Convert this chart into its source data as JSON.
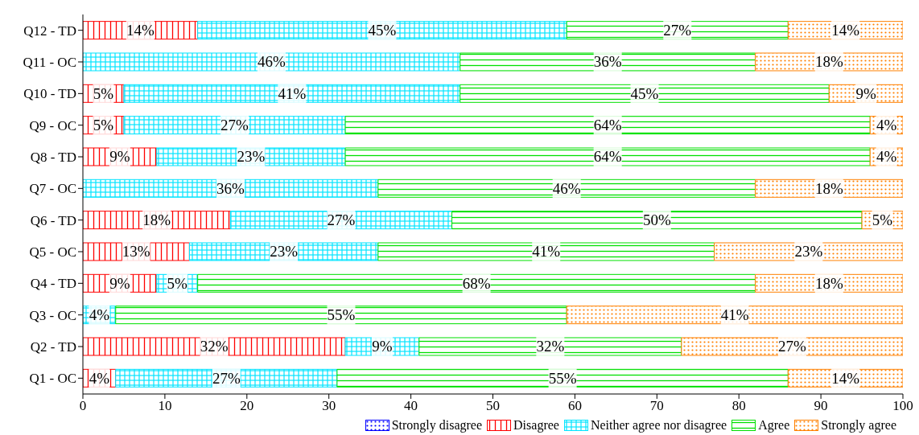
{
  "chart_data": {
    "type": "bar",
    "orientation": "horizontal",
    "stacked": true,
    "categories": [
      "Q12 - TD",
      "Q11 - OC",
      "Q10 - TD",
      "Q9 - OC",
      "Q8 - TD",
      "Q7 - OC",
      "Q6 - TD",
      "Q5 - OC",
      "Q4 - TD",
      "Q3 - OC",
      "Q2 - TD",
      "Q1 - OC"
    ],
    "series": [
      {
        "name": "Strongly disagree",
        "color": "#0000ff",
        "values": [
          null,
          null,
          null,
          null,
          null,
          null,
          null,
          null,
          null,
          null,
          null,
          null
        ],
        "value_labels": [
          null,
          null,
          null,
          null,
          null,
          null,
          null,
          null,
          null,
          null,
          null,
          null
        ]
      },
      {
        "name": "Disagree",
        "color": "#ff0000",
        "values": [
          14,
          null,
          5,
          5,
          9,
          null,
          18,
          13,
          9,
          null,
          32,
          4
        ],
        "value_labels": [
          "14%",
          null,
          "5%",
          "5%",
          "9%",
          null,
          "18%",
          "13%",
          "9%",
          null,
          "32%",
          "4%"
        ]
      },
      {
        "name": "Neither agree nor disagree",
        "color": "#00e5ff",
        "values": [
          45,
          46,
          41,
          27,
          23,
          36,
          27,
          23,
          5,
          4,
          9,
          27
        ],
        "value_labels": [
          "45%",
          "46%",
          "41%",
          "27%",
          "23%",
          "36%",
          "27%",
          "23%",
          "5%",
          "4%",
          "9%",
          "27%"
        ]
      },
      {
        "name": "Agree",
        "color": "#00e000",
        "values": [
          27,
          36,
          45,
          64,
          64,
          46,
          50,
          41,
          68,
          55,
          32,
          55
        ],
        "value_labels": [
          "27%",
          "36%",
          "45%",
          "64%",
          "64%",
          "46%",
          "50%",
          "41%",
          "68%",
          "55%",
          "32%",
          "55%"
        ]
      },
      {
        "name": "Strongly agree",
        "color": "#ff8000",
        "values": [
          14,
          18,
          9,
          4,
          4,
          18,
          5,
          23,
          18,
          41,
          27,
          14
        ],
        "value_labels": [
          "14%",
          "18%",
          "9%",
          "4%",
          "4%",
          "18%",
          "5%",
          "23%",
          "18%",
          "41%",
          "27%",
          "14%"
        ]
      }
    ],
    "xlim": [
      0,
      100
    ],
    "xticks": [
      0,
      10,
      20,
      30,
      40,
      50,
      60,
      70,
      80,
      90,
      100
    ],
    "grid": false,
    "legend": "bottom"
  }
}
